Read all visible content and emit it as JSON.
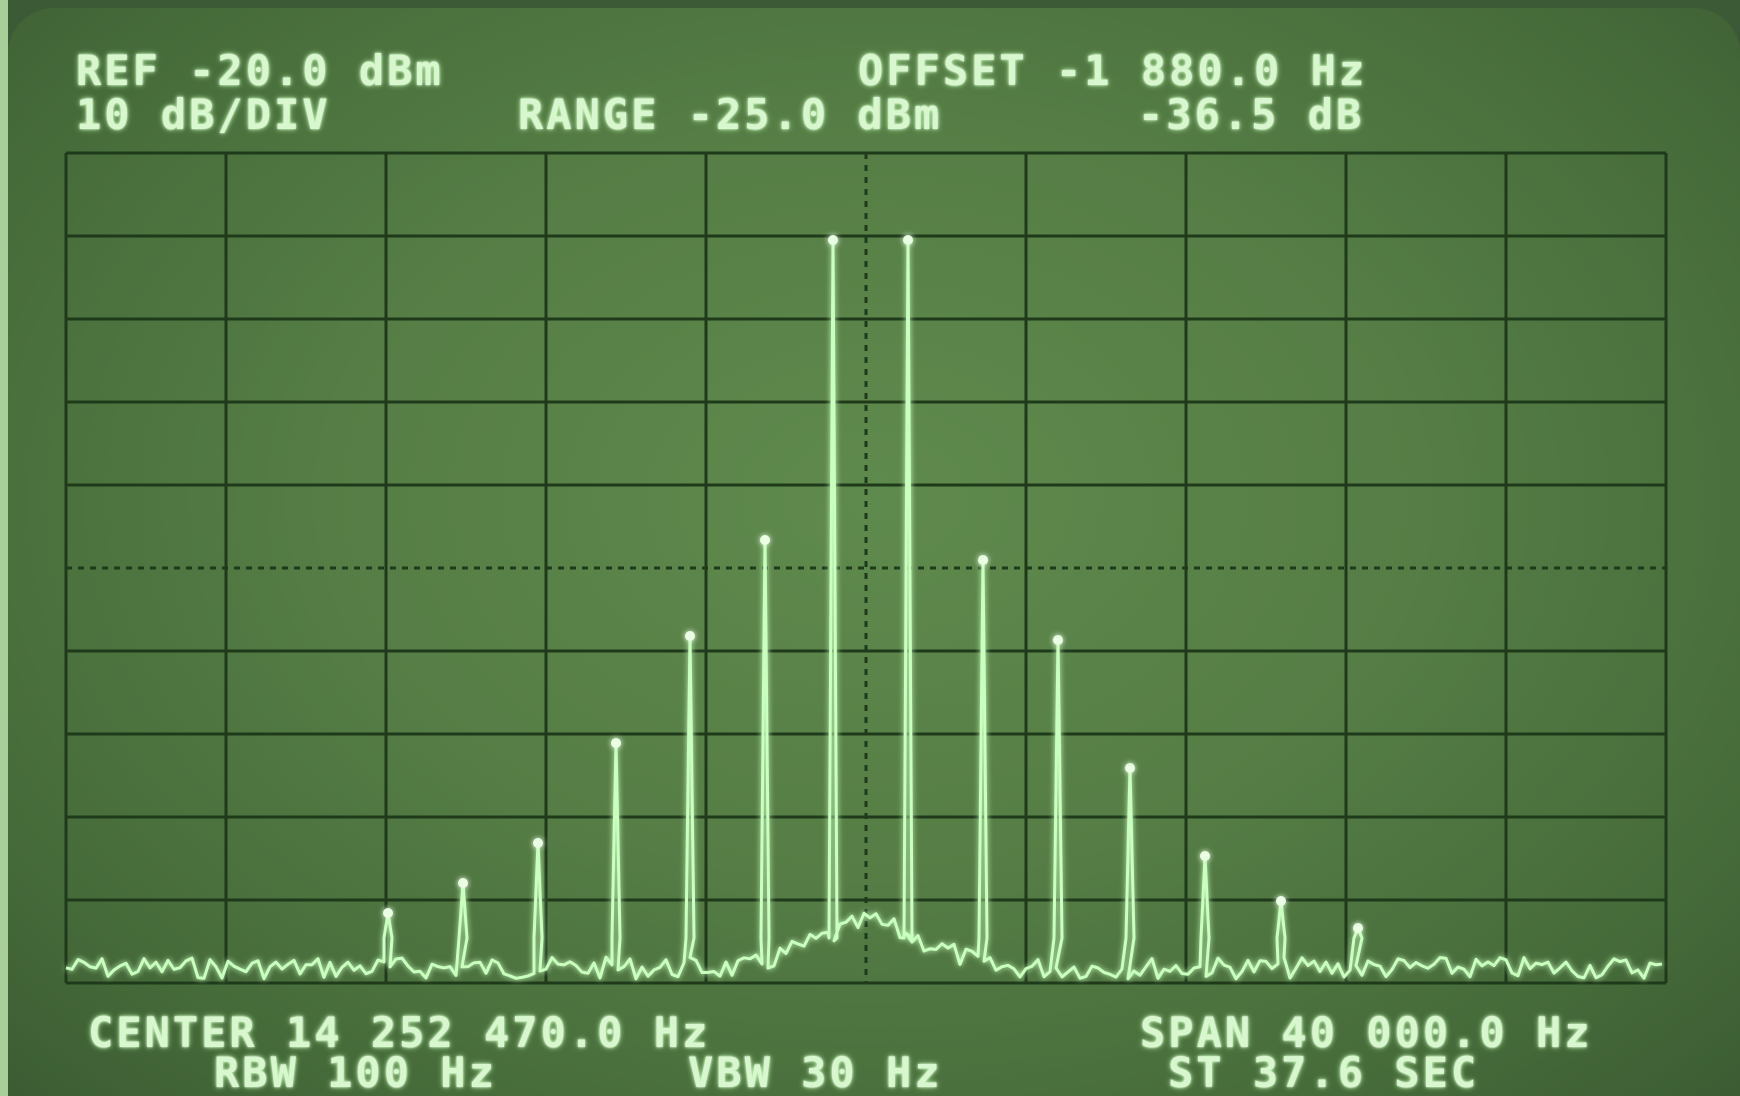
{
  "readouts": {
    "ref": "REF -20.0 dBm",
    "scale": "10 dB/DIV",
    "offset": "OFFSET -1 880.0 Hz",
    "range": "RANGE -25.0 dBm",
    "marker_db": "-36.5 dB",
    "center": "CENTER 14 252 470.0 Hz",
    "span": "SPAN 40 000.0 Hz",
    "rbw": "RBW 100 Hz",
    "vbw": "VBW 30 Hz",
    "sweep_time": "ST 37.6 SEC"
  },
  "colors": {
    "phosphor": "#d9f7cf",
    "trace": "#c9ffbf",
    "graticule": "#1f3a1a",
    "screen": "#557d45"
  }
}
